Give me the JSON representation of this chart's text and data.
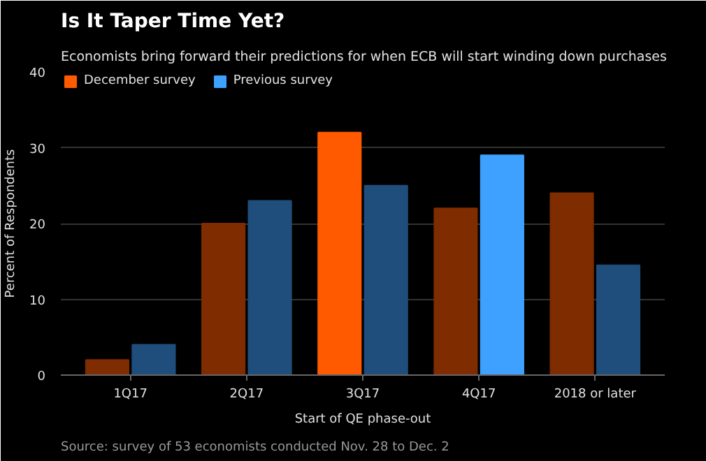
{
  "chart_data": {
    "type": "bar",
    "title": "Is It Taper Time Yet?",
    "subtitle": "Economists bring forward their predictions for when ECB will start winding down purchases",
    "categories": [
      "1Q17",
      "2Q17",
      "3Q17",
      "4Q17",
      "2018 or later"
    ],
    "xlabel": "Start of QE phase-out",
    "ylabel": "Percent of Respondents",
    "series": [
      {
        "name": "December survey",
        "color": "#ff5a00",
        "colors": [
          "#7f2c00",
          "#7f2c00",
          "#ff5a00",
          "#7f2c00",
          "#7f2c00"
        ],
        "values": [
          2,
          20,
          32,
          22,
          24
        ]
      },
      {
        "name": "Previous survey",
        "color": "#3ea0ff",
        "colors": [
          "#1f4e7c",
          "#1f4e7c",
          "#1f4e7c",
          "#3ea0ff",
          "#1f4e7c"
        ],
        "values": [
          4,
          23,
          25,
          29,
          14.5
        ]
      }
    ],
    "ylim": [
      0,
      40
    ],
    "yticks": [
      0,
      10,
      20,
      30,
      40
    ],
    "grid": "y",
    "legend": "top left",
    "annotations": [
      "Source: survey of 53 economists conducted Nov. 28 to Dec. 2"
    ]
  }
}
